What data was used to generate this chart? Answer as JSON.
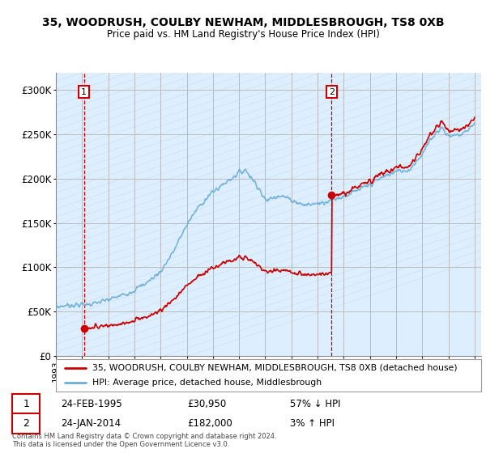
{
  "title_line1": "35, WOODRUSH, COULBY NEWHAM, MIDDLESBROUGH, TS8 0XB",
  "title_line2": "Price paid vs. HM Land Registry's House Price Index (HPI)",
  "ylim": [
    0,
    320000
  ],
  "yticks": [
    0,
    50000,
    100000,
    150000,
    200000,
    250000,
    300000
  ],
  "ytick_labels": [
    "£0",
    "£50K",
    "£100K",
    "£150K",
    "£200K",
    "£250K",
    "£300K"
  ],
  "hpi_color": "#6baed6",
  "price_color": "#cc0000",
  "sale1_date_num": 1995.15,
  "sale1_price": 30950,
  "sale1_label": "1",
  "sale2_date_num": 2014.07,
  "sale2_price": 182000,
  "sale2_label": "2",
  "legend_line1": "35, WOODRUSH, COULBY NEWHAM, MIDDLESBROUGH, TS8 0XB (detached house)",
  "legend_line2": "HPI: Average price, detached house, Middlesbrough",
  "annotation1_date": "24-FEB-1995",
  "annotation1_price": "£30,950",
  "annotation1_hpi": "57% ↓ HPI",
  "annotation2_date": "24-JAN-2014",
  "annotation2_price": "£182,000",
  "annotation2_hpi": "3% ↑ HPI",
  "footer": "Contains HM Land Registry data © Crown copyright and database right 2024.\nThis data is licensed under the Open Government Licence v3.0.",
  "bg_fill_color": "#ddeeff",
  "hatch_color": "#c8d8e8"
}
